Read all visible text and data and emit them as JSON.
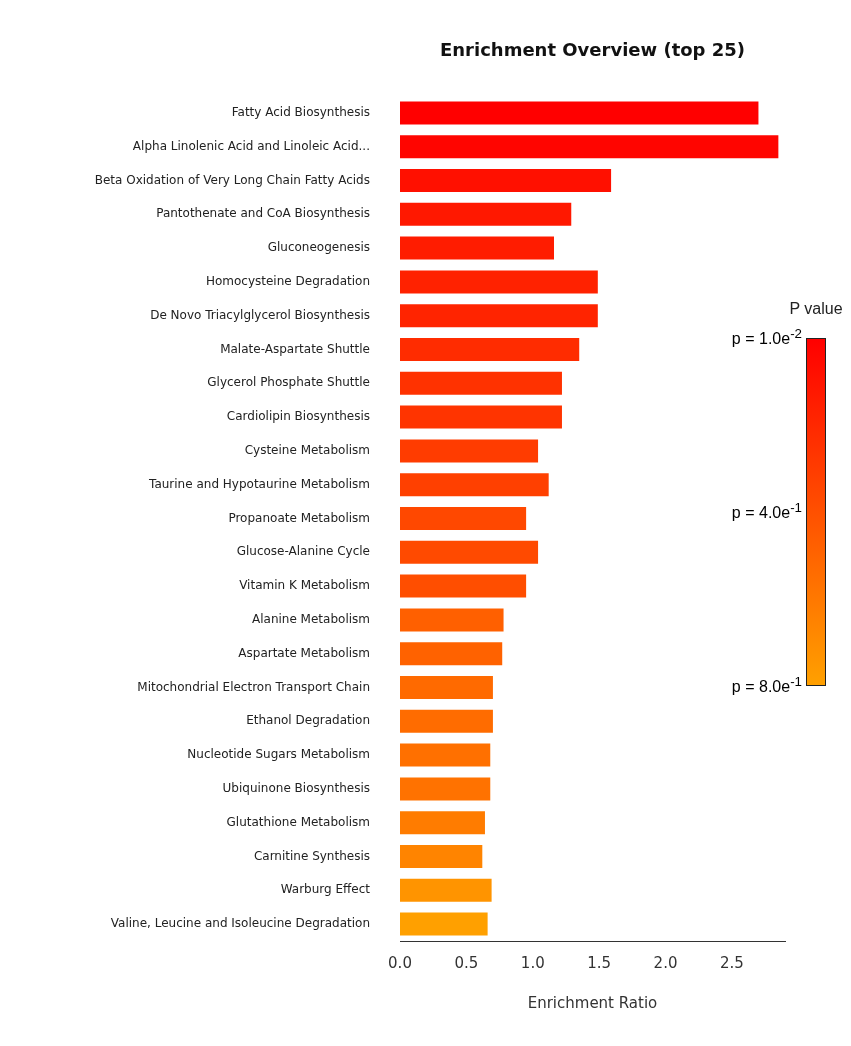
{
  "chart_data": {
    "type": "bar",
    "orientation": "horizontal",
    "title": "Enrichment Overview (top 25)",
    "xlabel": "Enrichment Ratio",
    "clabel": "P value",
    "categories": [
      "Fatty Acid Biosynthesis",
      "Alpha Linolenic Acid and Linoleic Acid...",
      "Beta Oxidation of Very Long Chain Fatty Acids",
      "Pantothenate and CoA Biosynthesis",
      "Gluconeogenesis",
      "Homocysteine Degradation",
      "De Novo Triacylglycerol Biosynthesis",
      "Malate-Aspartate Shuttle",
      "Glycerol Phosphate Shuttle",
      "Cardiolipin Biosynthesis",
      "Cysteine Metabolism",
      "Taurine and Hypotaurine Metabolism",
      "Propanoate Metabolism",
      "Glucose-Alanine Cycle",
      "Vitamin K Metabolism",
      "Alanine Metabolism",
      "Aspartate Metabolism",
      "Mitochondrial Electron Transport Chain",
      "Ethanol Degradation",
      "Nucleotide Sugars Metabolism",
      "Ubiquinone Biosynthesis",
      "Glutathione Metabolism",
      "Carnitine Synthesis",
      "Warburg Effect",
      "Valine, Leucine and Isoleucine Degradation"
    ],
    "values": [
      2.7,
      2.85,
      1.59,
      1.29,
      1.16,
      1.49,
      1.49,
      1.35,
      1.22,
      1.22,
      1.04,
      1.12,
      0.95,
      1.04,
      0.95,
      0.78,
      0.77,
      0.7,
      0.7,
      0.68,
      0.68,
      0.64,
      0.62,
      0.69,
      0.66
    ],
    "colors": [
      "#ff0000",
      "#ff0500",
      "#ff1000",
      "#ff1800",
      "#ff1c00",
      "#ff2200",
      "#ff2400",
      "#ff2c00",
      "#ff3200",
      "#ff3400",
      "#ff3c00",
      "#ff4000",
      "#ff4800",
      "#ff4a00",
      "#ff4e00",
      "#ff6000",
      "#ff6200",
      "#ff6a00",
      "#ff6c00",
      "#ff7000",
      "#ff7200",
      "#ff7c00",
      "#ff8400",
      "#ff9400",
      "#ffa000"
    ],
    "xlim": [
      0,
      2.9
    ],
    "xticks": [
      {
        "value": 0,
        "label": "0.0"
      },
      {
        "value": 0.5,
        "label": "0.5"
      },
      {
        "value": 1,
        "label": "1.0"
      },
      {
        "value": 1.5,
        "label": "1.5"
      },
      {
        "value": 2,
        "label": "2.0"
      },
      {
        "value": 2.5,
        "label": "2.5"
      }
    ],
    "annotations": [
      "p = 1.0e$^{-2}$",
      "p = 4.0e$^{-1}$",
      "p = 8.0e$^{-1}$"
    ],
    "grid": false,
    "legend": false
  }
}
